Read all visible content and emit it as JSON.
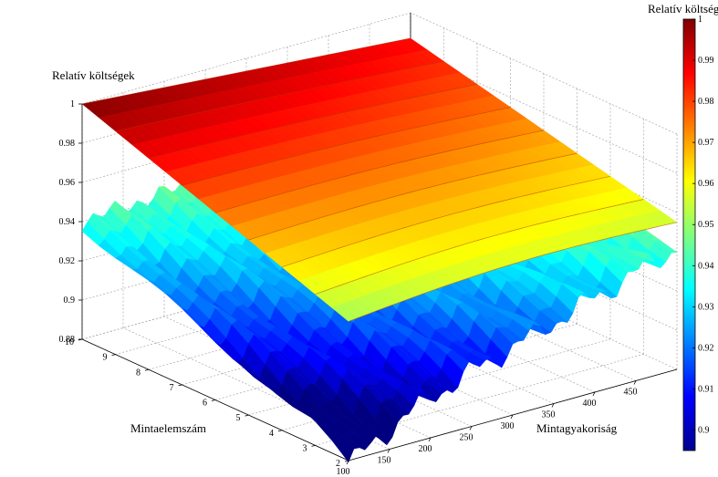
{
  "chart_data": {
    "type": "surface",
    "zlabel": "Relatív költségek",
    "xlabel": "Mintagyakoriság",
    "ylabel": "Mintaelemszám",
    "colorbar_label": "Relatív költségek",
    "colormap": "jet",
    "x_range": [
      100,
      500
    ],
    "y_range": [
      2,
      10
    ],
    "z_range": [
      0.88,
      1.0
    ],
    "x_ticks": [
      "100",
      "150",
      "200",
      "250",
      "300",
      "350",
      "400",
      "450"
    ],
    "y_ticks": [
      "2",
      "3",
      "4",
      "5",
      "6",
      "7",
      "8",
      "9",
      "10"
    ],
    "z_ticks": [
      "0.88",
      "0.9",
      "0.92",
      "0.94",
      "0.96",
      "0.98",
      "1"
    ],
    "colorbar_ticks": [
      "0.9",
      "0.91",
      "0.92",
      "0.93",
      "0.94",
      "0.95",
      "0.96",
      "0.97",
      "0.98",
      "0.99",
      "1"
    ],
    "colorbar_range": [
      0.895,
      1.0
    ],
    "series": [
      {
        "surface": "upper",
        "corners": {
          "x100_y10": 1.0,
          "x500_y10": 0.987,
          "x100_y2": 0.951,
          "x500_y2": 0.955
        }
      },
      {
        "surface": "lower",
        "corners": {
          "x100_y10": 0.94,
          "x500_y10": 0.952,
          "x100_y2": 0.887,
          "x500_y2": 0.942
        }
      }
    ],
    "grid": true
  }
}
